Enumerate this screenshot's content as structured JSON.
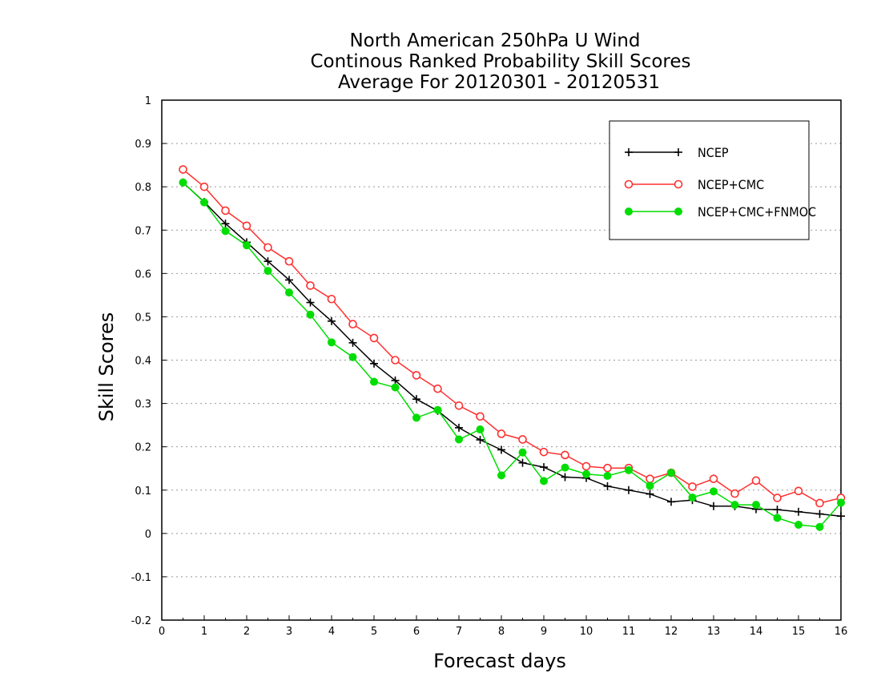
{
  "chart_data": {
    "type": "line",
    "title_lines": [
      "North American 250hPa U Wind",
      "Continous Ranked Probability Skill Scores",
      "Average For 20120301 - 20120531"
    ],
    "xlabel": "Forecast days",
    "ylabel": "Skill Scores",
    "xlim": [
      0,
      16
    ],
    "ylim": [
      -0.2,
      1
    ],
    "xticks": [
      0,
      1,
      2,
      3,
      4,
      5,
      6,
      7,
      8,
      9,
      10,
      11,
      12,
      13,
      14,
      15,
      16
    ],
    "yticks": [
      -0.2,
      -0.1,
      0,
      0.1,
      0.2,
      0.3,
      0.4,
      0.5,
      0.6,
      0.7,
      0.8,
      0.9,
      1
    ],
    "ytick_labels": [
      "-0.2",
      "-0.1",
      "0",
      "0.1",
      "0.2",
      "0.3",
      "0.4",
      "0.5",
      "0.6",
      "0.7",
      "0.8",
      "0.9",
      "1"
    ],
    "grid": "horizontal dotted",
    "legend_position": "top-right",
    "x": [
      0.5,
      1,
      1.5,
      2,
      2.5,
      3,
      3.5,
      4,
      4.5,
      5,
      5.5,
      6,
      6.5,
      7,
      7.5,
      8,
      8.5,
      9,
      9.5,
      10,
      10.5,
      11,
      11.5,
      12,
      12.5,
      13,
      13.5,
      14,
      14.5,
      15,
      15.5,
      16
    ],
    "series": [
      {
        "name": "NCEP",
        "color": "#000000",
        "marker": "plus",
        "values": [
          0.81,
          0.765,
          0.715,
          0.672,
          0.628,
          0.585,
          0.533,
          0.49,
          0.44,
          0.392,
          0.353,
          0.31,
          0.283,
          0.244,
          0.216,
          0.193,
          0.163,
          0.153,
          0.13,
          0.128,
          0.109,
          0.1,
          0.091,
          0.073,
          0.077,
          0.063,
          0.063,
          0.056,
          0.055,
          0.05,
          0.045,
          0.04
        ]
      },
      {
        "name": "NCEP+CMC",
        "color": "#ff3030",
        "marker": "open-circle",
        "values": [
          0.84,
          0.8,
          0.745,
          0.71,
          0.66,
          0.628,
          0.572,
          0.541,
          0.483,
          0.451,
          0.4,
          0.365,
          0.334,
          0.295,
          0.27,
          0.23,
          0.217,
          0.188,
          0.181,
          0.155,
          0.151,
          0.151,
          0.126,
          0.14,
          0.108,
          0.126,
          0.092,
          0.122,
          0.082,
          0.098,
          0.07,
          0.082
        ]
      },
      {
        "name": "NCEP+CMC+FNMOC",
        "color": "#00dd00",
        "marker": "filled-circle",
        "values": [
          0.81,
          0.764,
          0.698,
          0.665,
          0.606,
          0.556,
          0.505,
          0.441,
          0.407,
          0.35,
          0.337,
          0.267,
          0.285,
          0.217,
          0.24,
          0.134,
          0.187,
          0.121,
          0.152,
          0.137,
          0.133,
          0.146,
          0.11,
          0.14,
          0.083,
          0.097,
          0.066,
          0.066,
          0.036,
          0.02,
          0.015,
          0.071
        ]
      }
    ]
  }
}
